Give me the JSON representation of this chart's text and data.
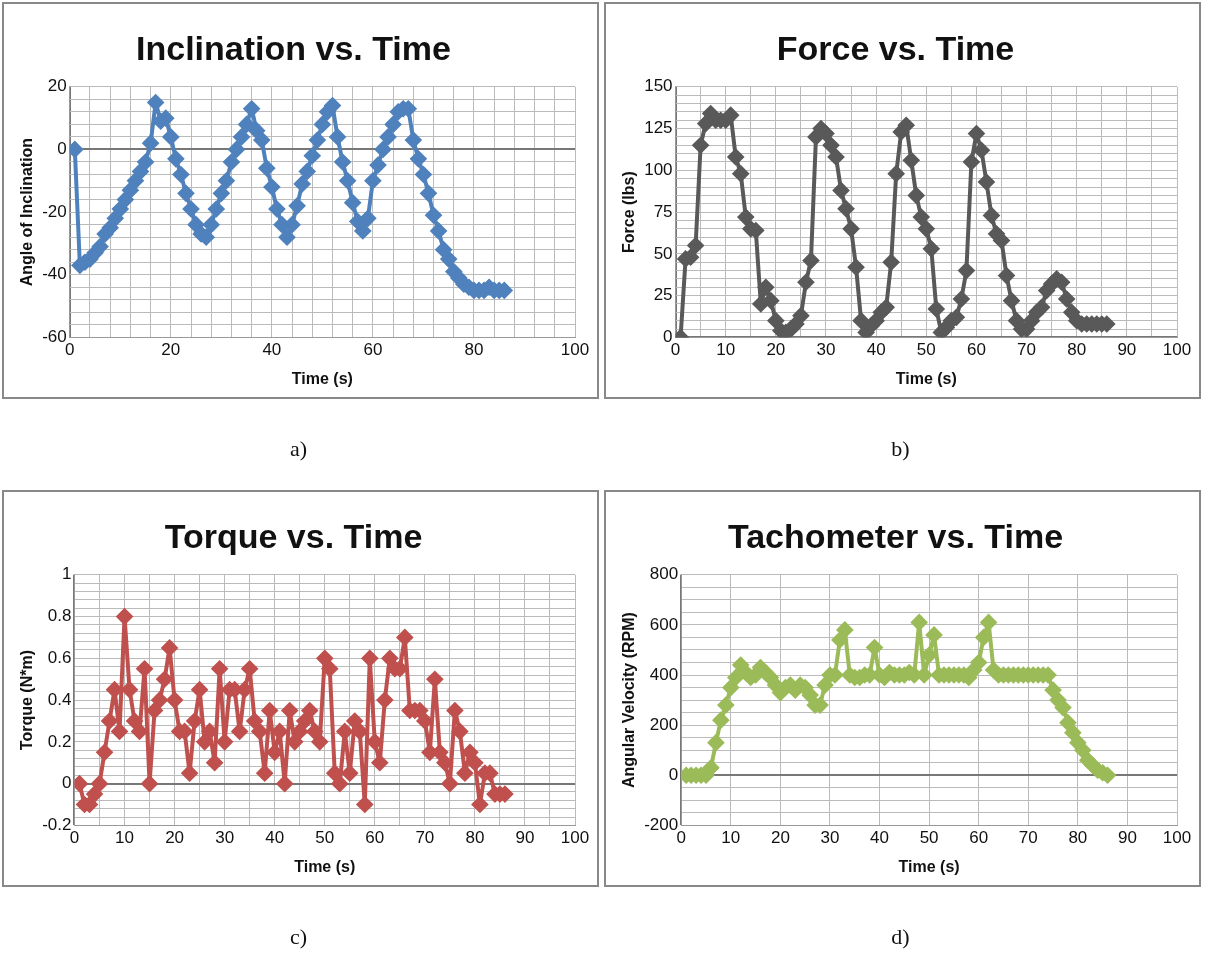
{
  "chart_data": [
    {
      "type": "line",
      "title": "Inclination vs. Time",
      "xlabel": "Time (s)",
      "ylabel": "Angle of Inclination",
      "annotations": [
        "a)"
      ],
      "marker": "diamond",
      "grid": true,
      "x": [
        1,
        2,
        3,
        4,
        5,
        6,
        7,
        8,
        9,
        10,
        11,
        12,
        13,
        14,
        15,
        16,
        17,
        18,
        19,
        20,
        21,
        22,
        23,
        24,
        25,
        26,
        27,
        28,
        29,
        30,
        31,
        32,
        33,
        34,
        35,
        36,
        37,
        38,
        39,
        40,
        41,
        42,
        43,
        44,
        45,
        46,
        47,
        48,
        49,
        50,
        51,
        52,
        53,
        54,
        55,
        56,
        57,
        58,
        59,
        60,
        61,
        62,
        63,
        64,
        65,
        66,
        67,
        68,
        69,
        70,
        71,
        72,
        73,
        74,
        75,
        76,
        77,
        78,
        79,
        80,
        81,
        82,
        83,
        84,
        85,
        86
      ],
      "series": [
        {
          "color": "#4f81bd",
          "values": [
            0,
            -37,
            -36,
            -35,
            -33,
            -31,
            -27,
            -25,
            -22,
            -19,
            -16,
            -13,
            -10,
            -7,
            -4,
            2,
            15,
            9,
            10,
            4,
            -3,
            -8,
            -14,
            -19,
            -24,
            -27,
            -28,
            -24,
            -19,
            -14,
            -10,
            -4,
            0,
            4,
            8,
            13,
            6,
            3,
            -6,
            -12,
            -19,
            -24,
            -28,
            -24,
            -18,
            -11,
            -7,
            -2,
            3,
            8,
            12,
            14,
            4,
            -4,
            -10,
            -17,
            -23,
            -26,
            -22,
            -10,
            -5,
            0,
            4,
            8,
            12,
            13,
            13,
            3,
            -3,
            -8,
            -14,
            -21,
            -26,
            -32,
            -35,
            -39,
            -41,
            -43,
            -44,
            -45,
            -45,
            -45,
            -44,
            -45,
            -45,
            -45
          ]
        }
      ],
      "xlim": [
        0,
        100
      ],
      "ylim": [
        -60,
        20
      ],
      "xticks": [
        0,
        {
          "value": 4,
          "label": null
        },
        {
          "value": 8,
          "label": null
        },
        {
          "value": 12,
          "label": null
        },
        {
          "value": 16,
          "label": null
        },
        20,
        {
          "value": 24,
          "label": null
        },
        {
          "value": 28,
          "label": null
        },
        {
          "value": 32,
          "label": null
        },
        {
          "value": 36,
          "label": null
        },
        40,
        {
          "value": 44,
          "label": null
        },
        {
          "value": 48,
          "label": null
        },
        {
          "value": 52,
          "label": null
        },
        {
          "value": 56,
          "label": null
        },
        60,
        {
          "value": 64,
          "label": null
        },
        {
          "value": 68,
          "label": null
        },
        {
          "value": 72,
          "label": null
        },
        {
          "value": 76,
          "label": null
        },
        80,
        {
          "value": 84,
          "label": null
        },
        {
          "value": 88,
          "label": null
        },
        {
          "value": 92,
          "label": null
        },
        {
          "value": 96,
          "label": null
        },
        100
      ],
      "yticks": [
        -60,
        {
          "value": -56,
          "label": null
        },
        {
          "value": -52,
          "label": null
        },
        {
          "value": -48,
          "label": null
        },
        {
          "value": -44,
          "label": null
        },
        -40,
        {
          "value": -36,
          "label": null
        },
        {
          "value": -32,
          "label": null
        },
        {
          "value": -28,
          "label": null
        },
        {
          "value": -24,
          "label": null
        },
        -20,
        {
          "value": -16,
          "label": null
        },
        {
          "value": -12,
          "label": null
        },
        {
          "value": -8,
          "label": null
        },
        {
          "value": -4,
          "label": null
        },
        0,
        {
          "value": 4,
          "label": null
        },
        {
          "value": 8,
          "label": null
        },
        {
          "value": 12,
          "label": null
        },
        {
          "value": 16,
          "label": null
        },
        20
      ]
    },
    {
      "type": "line",
      "title": "Force vs. Time",
      "xlabel": "Time (s)",
      "ylabel": "Force (lbs)",
      "annotations": [
        "b)"
      ],
      "marker": "diamond",
      "grid": true,
      "x": [
        1,
        2,
        3,
        4,
        5,
        6,
        7,
        8,
        9,
        10,
        11,
        12,
        13,
        14,
        15,
        16,
        17,
        18,
        19,
        20,
        21,
        22,
        23,
        24,
        25,
        26,
        27,
        28,
        29,
        30,
        31,
        32,
        33,
        34,
        35,
        36,
        37,
        38,
        39,
        40,
        41,
        42,
        43,
        44,
        45,
        46,
        47,
        48,
        49,
        50,
        51,
        52,
        53,
        54,
        55,
        56,
        57,
        58,
        59,
        60,
        61,
        62,
        63,
        64,
        65,
        66,
        67,
        68,
        69,
        70,
        71,
        72,
        73,
        74,
        75,
        76,
        77,
        78,
        79,
        80,
        81,
        82,
        83,
        84,
        85,
        86
      ],
      "series": [
        {
          "color": "#595959",
          "values": [
            0,
            47,
            48,
            55,
            115,
            128,
            134,
            130,
            130,
            130,
            133,
            108,
            98,
            72,
            65,
            64,
            20,
            30,
            22,
            10,
            4,
            3,
            5,
            8,
            13,
            33,
            46,
            120,
            125,
            122,
            115,
            108,
            88,
            77,
            65,
            42,
            10,
            3,
            7,
            10,
            15,
            18,
            45,
            98,
            123,
            127,
            106,
            85,
            72,
            65,
            53,
            17,
            3,
            6,
            10,
            12,
            23,
            40,
            105,
            122,
            112,
            93,
            73,
            62,
            58,
            37,
            22,
            10,
            5,
            5,
            10,
            15,
            18,
            28,
            32,
            35,
            33,
            23,
            15,
            10,
            8,
            8,
            8,
            8,
            8,
            8
          ]
        }
      ],
      "xlim": [
        0,
        100
      ],
      "ylim": [
        0,
        150
      ],
      "xticks": [
        0,
        {
          "value": 5,
          "label": null
        },
        10,
        {
          "value": 15,
          "label": null
        },
        20,
        {
          "value": 25,
          "label": null
        },
        30,
        {
          "value": 35,
          "label": null
        },
        40,
        {
          "value": 45,
          "label": null
        },
        50,
        {
          "value": 55,
          "label": null
        },
        60,
        {
          "value": 65,
          "label": null
        },
        70,
        {
          "value": 75,
          "label": null
        },
        80,
        {
          "value": 85,
          "label": null
        },
        90,
        {
          "value": 95,
          "label": null
        },
        100
      ],
      "yticks": [
        0,
        {
          "value": 5,
          "label": null
        },
        {
          "value": 10,
          "label": null
        },
        {
          "value": 15,
          "label": null
        },
        {
          "value": 20,
          "label": null
        },
        25,
        {
          "value": 30,
          "label": null
        },
        {
          "value": 35,
          "label": null
        },
        {
          "value": 40,
          "label": null
        },
        {
          "value": 45,
          "label": null
        },
        50,
        {
          "value": 55,
          "label": null
        },
        {
          "value": 60,
          "label": null
        },
        {
          "value": 65,
          "label": null
        },
        {
          "value": 70,
          "label": null
        },
        75,
        {
          "value": 80,
          "label": null
        },
        {
          "value": 85,
          "label": null
        },
        {
          "value": 90,
          "label": null
        },
        {
          "value": 95,
          "label": null
        },
        100,
        {
          "value": 105,
          "label": null
        },
        {
          "value": 110,
          "label": null
        },
        {
          "value": 115,
          "label": null
        },
        {
          "value": 120,
          "label": null
        },
        125,
        {
          "value": 130,
          "label": null
        },
        {
          "value": 135,
          "label": null
        },
        {
          "value": 140,
          "label": null
        },
        {
          "value": 145,
          "label": null
        },
        150
      ]
    },
    {
      "type": "line",
      "title": "Torque vs. Time",
      "xlabel": "Time (s)",
      "ylabel": "Torque (N*m)",
      "annotations": [
        "c)"
      ],
      "marker": "diamond",
      "grid": true,
      "x": [
        1,
        2,
        3,
        4,
        5,
        6,
        7,
        8,
        9,
        10,
        11,
        12,
        13,
        14,
        15,
        16,
        17,
        18,
        19,
        20,
        21,
        22,
        23,
        24,
        25,
        26,
        27,
        28,
        29,
        30,
        31,
        32,
        33,
        34,
        35,
        36,
        37,
        38,
        39,
        40,
        41,
        42,
        43,
        44,
        45,
        46,
        47,
        48,
        49,
        50,
        51,
        52,
        53,
        54,
        55,
        56,
        57,
        58,
        59,
        60,
        61,
        62,
        63,
        64,
        65,
        66,
        67,
        68,
        69,
        70,
        71,
        72,
        73,
        74,
        75,
        76,
        77,
        78,
        79,
        80,
        81,
        82,
        83,
        84,
        85,
        86
      ],
      "series": [
        {
          "color": "#c0504d",
          "values": [
            0,
            -0.1,
            -0.1,
            -0.05,
            0,
            0.15,
            0.3,
            0.45,
            0.25,
            0.8,
            0.45,
            0.3,
            0.25,
            0.55,
            0,
            0.35,
            0.4,
            0.5,
            0.65,
            0.4,
            0.25,
            0.25,
            0.05,
            0.3,
            0.45,
            0.2,
            0.25,
            0.1,
            0.55,
            0.2,
            0.45,
            0.45,
            0.25,
            0.45,
            0.55,
            0.3,
            0.25,
            0.05,
            0.35,
            0.15,
            0.25,
            0,
            0.35,
            0.2,
            0.25,
            0.3,
            0.35,
            0.25,
            0.2,
            0.6,
            0.55,
            0.05,
            0,
            0.25,
            0.05,
            0.3,
            0.25,
            -0.1,
            0.6,
            0.2,
            0.1,
            0.4,
            0.6,
            0.55,
            0.55,
            0.7,
            0.35,
            0.35,
            0.35,
            0.3,
            0.15,
            0.5,
            0.15,
            0.1,
            0,
            0.35,
            0.25,
            0.05,
            0.15,
            0.1,
            -0.1,
            0.05,
            0.05,
            -0.05,
            -0.05,
            -0.05
          ]
        }
      ],
      "xlim": [
        0,
        100
      ],
      "ylim": [
        -0.2,
        1
      ],
      "xticks": [
        0,
        {
          "value": 5,
          "label": null
        },
        10,
        {
          "value": 15,
          "label": null
        },
        20,
        {
          "value": 25,
          "label": null
        },
        30,
        {
          "value": 35,
          "label": null
        },
        40,
        {
          "value": 45,
          "label": null
        },
        50,
        {
          "value": 55,
          "label": null
        },
        60,
        {
          "value": 65,
          "label": null
        },
        70,
        {
          "value": 75,
          "label": null
        },
        80,
        {
          "value": 85,
          "label": null
        },
        90,
        {
          "value": 95,
          "label": null
        },
        100
      ],
      "yticks": [
        -0.2,
        {
          "value": -0.16,
          "label": null
        },
        {
          "value": -0.12,
          "label": null
        },
        {
          "value": -0.08,
          "label": null
        },
        {
          "value": -0.04,
          "label": null
        },
        0,
        {
          "value": 0.04,
          "label": null
        },
        {
          "value": 0.08,
          "label": null
        },
        {
          "value": 0.12,
          "label": null
        },
        {
          "value": 0.16,
          "label": null
        },
        0.2,
        {
          "value": 0.24,
          "label": null
        },
        {
          "value": 0.28,
          "label": null
        },
        {
          "value": 0.32,
          "label": null
        },
        {
          "value": 0.36,
          "label": null
        },
        0.4,
        {
          "value": 0.44,
          "label": null
        },
        {
          "value": 0.48,
          "label": null
        },
        {
          "value": 0.52,
          "label": null
        },
        {
          "value": 0.56,
          "label": null
        },
        0.6,
        {
          "value": 0.64,
          "label": null
        },
        {
          "value": 0.68,
          "label": null
        },
        {
          "value": 0.72,
          "label": null
        },
        {
          "value": 0.76,
          "label": null
        },
        0.8,
        {
          "value": 0.84,
          "label": null
        },
        {
          "value": 0.88,
          "label": null
        },
        {
          "value": 0.92,
          "label": null
        },
        {
          "value": 0.96,
          "label": null
        },
        1
      ]
    },
    {
      "type": "line",
      "title": "Tachometer vs. Time",
      "xlabel": "Time (s)",
      "ylabel": "Angular Velocity (RPM)",
      "annotations": [
        "d)"
      ],
      "marker": "diamond",
      "grid": true,
      "x": [
        1,
        2,
        3,
        4,
        5,
        6,
        7,
        8,
        9,
        10,
        11,
        12,
        13,
        14,
        15,
        16,
        17,
        18,
        19,
        20,
        21,
        22,
        23,
        24,
        25,
        26,
        27,
        28,
        29,
        30,
        31,
        32,
        33,
        34,
        35,
        36,
        37,
        38,
        39,
        40,
        41,
        42,
        43,
        44,
        45,
        46,
        47,
        48,
        49,
        50,
        51,
        52,
        53,
        54,
        55,
        56,
        57,
        58,
        59,
        60,
        61,
        62,
        63,
        64,
        65,
        66,
        67,
        68,
        69,
        70,
        71,
        72,
        73,
        74,
        75,
        76,
        77,
        78,
        79,
        80,
        81,
        82,
        83,
        84,
        85,
        86
      ],
      "series": [
        {
          "color": "#9bbb59",
          "values": [
            0,
            0,
            0,
            0,
            0,
            30,
            130,
            220,
            280,
            350,
            390,
            440,
            410,
            390,
            400,
            430,
            410,
            390,
            360,
            330,
            350,
            360,
            340,
            360,
            350,
            320,
            280,
            280,
            360,
            400,
            400,
            540,
            580,
            400,
            390,
            390,
            400,
            400,
            510,
            400,
            390,
            410,
            400,
            400,
            400,
            410,
            400,
            610,
            400,
            480,
            560,
            400,
            400,
            400,
            400,
            400,
            400,
            390,
            420,
            450,
            550,
            610,
            420,
            400,
            400,
            400,
            400,
            400,
            400,
            400,
            400,
            400,
            400,
            400,
            340,
            300,
            270,
            210,
            170,
            130,
            100,
            60,
            40,
            20,
            10,
            0
          ]
        }
      ],
      "xlim": [
        0,
        100
      ],
      "ylim": [
        -200,
        800
      ],
      "xticks": [
        0,
        10,
        20,
        30,
        40,
        50,
        60,
        70,
        80,
        90,
        100
      ],
      "yticks": [
        -200,
        {
          "value": -150,
          "label": null
        },
        {
          "value": -100,
          "label": null
        },
        {
          "value": -50,
          "label": null
        },
        0,
        {
          "value": 50,
          "label": null
        },
        {
          "value": 100,
          "label": null
        },
        {
          "value": 150,
          "label": null
        },
        200,
        {
          "value": 250,
          "label": null
        },
        {
          "value": 300,
          "label": null
        },
        {
          "value": 350,
          "label": null
        },
        400,
        {
          "value": 450,
          "label": null
        },
        {
          "value": 500,
          "label": null
        },
        {
          "value": 550,
          "label": null
        },
        600,
        {
          "value": 650,
          "label": null
        },
        {
          "value": 700,
          "label": null
        },
        {
          "value": 750,
          "label": null
        },
        800
      ]
    }
  ]
}
